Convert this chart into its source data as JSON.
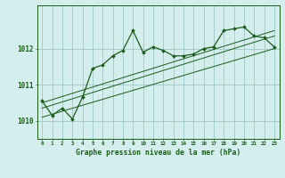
{
  "title": "Graphe pression niveau de la mer (hPa)",
  "bg_color": "#d4eeed",
  "grid_color": "#9ec8c8",
  "line_color": "#1a5c1a",
  "x_labels": [
    "0",
    "1",
    "2",
    "3",
    "4",
    "5",
    "6",
    "7",
    "8",
    "9",
    "10",
    "11",
    "12",
    "13",
    "14",
    "15",
    "16",
    "17",
    "18",
    "19",
    "20",
    "21",
    "22",
    "23"
  ],
  "xlim": [
    -0.5,
    23.5
  ],
  "ylim": [
    1009.5,
    1013.2
  ],
  "yticks": [
    1010,
    1011,
    1012
  ],
  "main_series_x": [
    0,
    1,
    2,
    3,
    4,
    5,
    6,
    7,
    8,
    9,
    10,
    11,
    12,
    13,
    14,
    15,
    16,
    17,
    18,
    19,
    20,
    21,
    22,
    23
  ],
  "main_series_y": [
    1010.55,
    1010.15,
    1010.35,
    1010.05,
    1010.65,
    1011.45,
    1011.55,
    1011.8,
    1011.95,
    1012.5,
    1011.9,
    1012.05,
    1011.95,
    1011.8,
    1011.8,
    1011.85,
    1012.0,
    1012.05,
    1012.5,
    1012.55,
    1012.6,
    1012.35,
    1012.3,
    1012.05
  ],
  "trend_lines": [
    {
      "x": [
        0,
        23
      ],
      "y": [
        1010.5,
        1012.5
      ]
    },
    {
      "x": [
        0,
        23
      ],
      "y": [
        1010.35,
        1012.35
      ]
    },
    {
      "x": [
        0,
        23
      ],
      "y": [
        1010.1,
        1012.0
      ]
    }
  ]
}
